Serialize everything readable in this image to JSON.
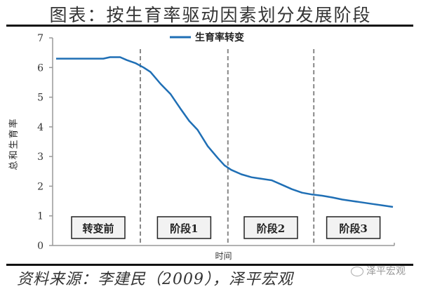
{
  "header": {
    "title": "图表：按生育率驱动因素划分发展阶段"
  },
  "footer": {
    "source": "资料来源：李建民（2009），泽平宏观",
    "watermark": "泽平宏观"
  },
  "colors": {
    "line": "#1f6fb5",
    "axis": "#999999",
    "divider": "#888888",
    "box_fill": "#f2f2f2",
    "box_border": "#222222"
  },
  "chart_data": {
    "type": "line",
    "title": "图表：按生育率驱动因素划分发展阶段",
    "xlabel": "时间",
    "ylabel": "总和生育率",
    "ylim": [
      0,
      7
    ],
    "yticks": [
      0,
      1,
      2,
      3,
      4,
      5,
      6,
      7
    ],
    "grid": false,
    "legend": {
      "position": "top-center",
      "entries": [
        "生育率转变"
      ]
    },
    "series": [
      {
        "name": "生育率转变",
        "x": [
          0,
          5,
          10,
          14,
          16,
          19,
          21,
          23.5,
          26,
          28,
          31,
          34,
          37,
          39.5,
          42,
          45,
          48,
          50,
          52,
          55,
          58,
          61,
          64,
          67,
          70,
          73,
          76,
          79,
          82,
          85,
          88,
          91,
          94,
          97,
          100
        ],
        "values": [
          6.3,
          6.3,
          6.3,
          6.3,
          6.35,
          6.35,
          6.25,
          6.15,
          6.0,
          5.85,
          5.45,
          5.1,
          4.6,
          4.2,
          3.9,
          3.35,
          2.95,
          2.7,
          2.55,
          2.4,
          2.3,
          2.25,
          2.2,
          2.05,
          1.9,
          1.78,
          1.72,
          1.68,
          1.62,
          1.55,
          1.5,
          1.45,
          1.4,
          1.35,
          1.3
        ]
      }
    ],
    "stage_dividers_x": [
      25,
      51,
      76.5
    ],
    "stages": [
      "转变前",
      "阶段1",
      "阶段2",
      "阶段3"
    ]
  },
  "axis_labels": {
    "y": [
      "0",
      "1",
      "2",
      "3",
      "4",
      "5",
      "6",
      "7"
    ],
    "x": "时间",
    "y_title": "总和生育率"
  }
}
